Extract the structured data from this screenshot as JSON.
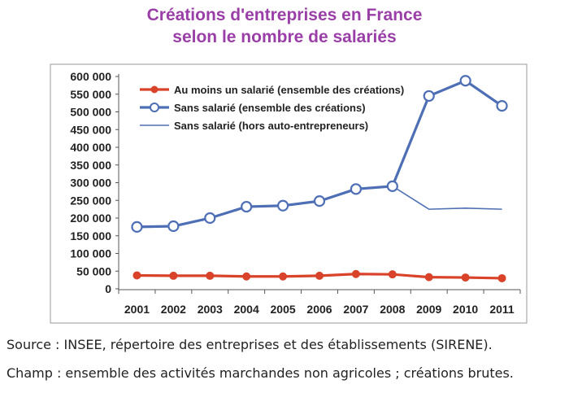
{
  "title_line1": "Créations d'entreprises en France",
  "title_line2": "selon le nombre de salariés",
  "source": "Source : INSEE, répertoire des entreprises et des établissements (SIRENE).",
  "champ": "Champ : ensemble des activités marchandes non agricoles ; créations brutes.",
  "chart_data": {
    "type": "line",
    "title": "Créations d'entreprises en France selon le nombre de salariés",
    "xlabel": "",
    "ylabel": "",
    "x": [
      "2001",
      "2002",
      "2003",
      "2004",
      "2005",
      "2006",
      "2007",
      "2008",
      "2009",
      "2010",
      "2011"
    ],
    "ylim": [
      0,
      600000
    ],
    "yticks": [
      0,
      50000,
      100000,
      150000,
      200000,
      250000,
      300000,
      350000,
      400000,
      450000,
      500000,
      550000,
      600000
    ],
    "ytick_labels": [
      "0",
      "50 000",
      "100 000",
      "150 000",
      "200 000",
      "250 000",
      "300 000",
      "350 000",
      "400 000",
      "450 000",
      "500 000",
      "550 000",
      "600 000"
    ],
    "legend_position": "top-left",
    "series": [
      {
        "name": "Au moins un salarié (ensemble des créations)",
        "color": "#d9432a",
        "marker": "filled-circle",
        "values": [
          38000,
          37000,
          37000,
          35000,
          35000,
          37000,
          42000,
          41000,
          33000,
          32000,
          30000
        ]
      },
      {
        "name": "Sans salarié (ensemble des créations)",
        "color": "#4e6fb5",
        "marker": "open-circle",
        "values": [
          175000,
          177000,
          200000,
          232000,
          235000,
          248000,
          282000,
          290000,
          545000,
          588000,
          517000
        ]
      },
      {
        "name": "Sans salarié (hors auto-entrepreneurs)",
        "color": "#4e6fb5",
        "marker": "none",
        "values": [
          175000,
          177000,
          200000,
          232000,
          235000,
          248000,
          282000,
          290000,
          225000,
          228000,
          225000
        ]
      }
    ]
  }
}
